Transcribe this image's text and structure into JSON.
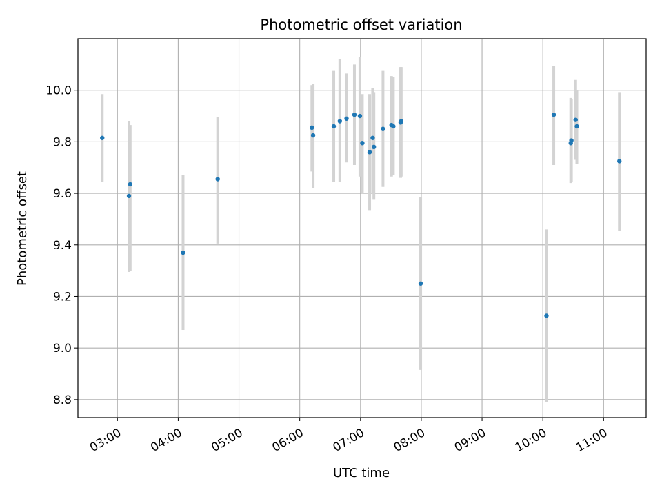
{
  "chart_data": {
    "type": "scatter",
    "title": "Photometric offset variation",
    "xlabel": "UTC time",
    "ylabel": "Photometric offset",
    "grid": true,
    "x_unit": "hours UTC",
    "xlim": [
      2.35,
      11.7
    ],
    "ylim": [
      8.73,
      10.2
    ],
    "x_ticks": [
      {
        "value": 3,
        "label": "03:00"
      },
      {
        "value": 4,
        "label": "04:00"
      },
      {
        "value": 5,
        "label": "05:00"
      },
      {
        "value": 6,
        "label": "06:00"
      },
      {
        "value": 7,
        "label": "07:00"
      },
      {
        "value": 8,
        "label": "08:00"
      },
      {
        "value": 9,
        "label": "09:00"
      },
      {
        "value": 10,
        "label": "10:00"
      },
      {
        "value": 11,
        "label": "11:00"
      }
    ],
    "y_ticks": [
      {
        "value": 8.8,
        "label": "8.8"
      },
      {
        "value": 9.0,
        "label": "9.0"
      },
      {
        "value": 9.2,
        "label": "9.2"
      },
      {
        "value": 9.4,
        "label": "9.4"
      },
      {
        "value": 9.6,
        "label": "9.6"
      },
      {
        "value": 9.8,
        "label": "9.8"
      },
      {
        "value": 10.0,
        "label": "10.0"
      }
    ],
    "colors": {
      "point": "#1f77b4",
      "errorbar": "#d3d3d3",
      "grid": "#b0b0b0",
      "axis": "#000000"
    },
    "points": [
      {
        "x": 2.75,
        "y": 9.815,
        "low": 9.645,
        "high": 9.985
      },
      {
        "x": 3.19,
        "y": 9.59,
        "low": 9.295,
        "high": 9.88
      },
      {
        "x": 3.21,
        "y": 9.635,
        "low": 9.3,
        "high": 9.865
      },
      {
        "x": 4.08,
        "y": 9.37,
        "low": 9.07,
        "high": 9.67
      },
      {
        "x": 4.65,
        "y": 9.655,
        "low": 9.405,
        "high": 9.895
      },
      {
        "x": 6.2,
        "y": 9.855,
        "low": 9.685,
        "high": 10.02
      },
      {
        "x": 6.22,
        "y": 9.825,
        "low": 9.62,
        "high": 10.025
      },
      {
        "x": 6.56,
        "y": 9.86,
        "low": 9.645,
        "high": 10.075
      },
      {
        "x": 6.66,
        "y": 9.88,
        "low": 9.645,
        "high": 10.12
      },
      {
        "x": 6.77,
        "y": 9.89,
        "low": 9.72,
        "high": 10.065
      },
      {
        "x": 6.9,
        "y": 9.905,
        "low": 9.71,
        "high": 10.1
      },
      {
        "x": 6.99,
        "y": 9.9,
        "low": 9.665,
        "high": 10.13
      },
      {
        "x": 7.03,
        "y": 9.795,
        "low": 9.6,
        "high": 9.985
      },
      {
        "x": 7.15,
        "y": 9.76,
        "low": 9.535,
        "high": 9.985
      },
      {
        "x": 7.2,
        "y": 9.815,
        "low": 9.6,
        "high": 10.01
      },
      {
        "x": 7.22,
        "y": 9.78,
        "low": 9.575,
        "high": 9.99
      },
      {
        "x": 7.37,
        "y": 9.85,
        "low": 9.625,
        "high": 10.075
      },
      {
        "x": 7.51,
        "y": 9.865,
        "low": 9.665,
        "high": 10.055
      },
      {
        "x": 7.54,
        "y": 9.86,
        "low": 9.67,
        "high": 10.05
      },
      {
        "x": 7.66,
        "y": 9.875,
        "low": 9.66,
        "high": 10.09
      },
      {
        "x": 7.67,
        "y": 9.88,
        "low": 9.665,
        "high": 10.09
      },
      {
        "x": 7.99,
        "y": 9.25,
        "low": 8.915,
        "high": 9.585
      },
      {
        "x": 10.06,
        "y": 9.125,
        "low": 8.79,
        "high": 9.46
      },
      {
        "x": 10.18,
        "y": 9.905,
        "low": 9.71,
        "high": 10.095
      },
      {
        "x": 10.46,
        "y": 9.795,
        "low": 9.64,
        "high": 9.97
      },
      {
        "x": 10.47,
        "y": 9.805,
        "low": 9.645,
        "high": 9.965
      },
      {
        "x": 10.54,
        "y": 9.885,
        "low": 9.73,
        "high": 10.04
      },
      {
        "x": 10.56,
        "y": 9.86,
        "low": 9.715,
        "high": 10.0
      },
      {
        "x": 11.26,
        "y": 9.725,
        "low": 9.455,
        "high": 9.99
      }
    ]
  }
}
